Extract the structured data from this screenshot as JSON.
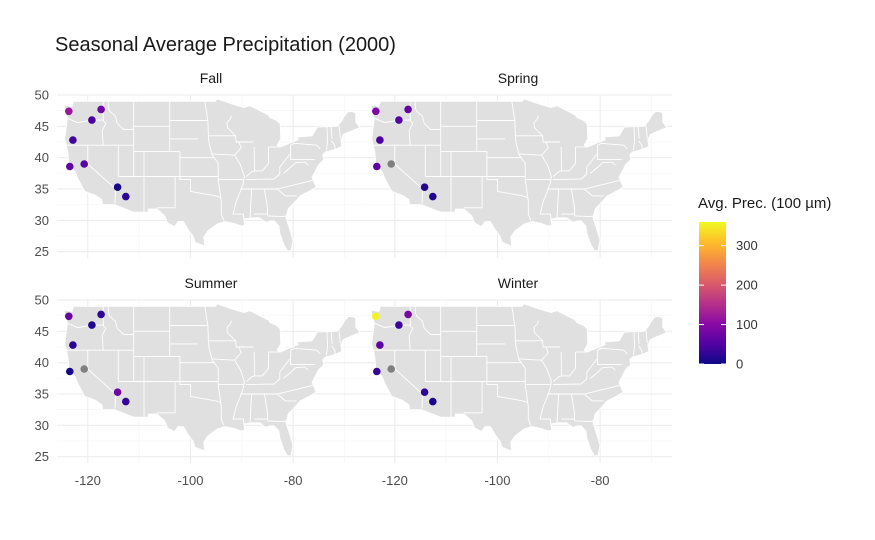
{
  "chart_data": {
    "type": "scatter",
    "title": "Seasonal Average Precipitation (2000)",
    "xlabel": "",
    "ylabel": "",
    "xlim": [
      -126,
      -66
    ],
    "ylim": [
      24,
      50
    ],
    "x_ticks": [
      -120,
      -100,
      -80
    ],
    "y_ticks": [
      25,
      30,
      35,
      40,
      45,
      50
    ],
    "grid": true,
    "legend": {
      "title": "Avg. Prec. (100 µm)",
      "placement": "right",
      "range": [
        0,
        360
      ],
      "ticks": [
        0,
        100,
        200,
        300
      ],
      "na_color": "#808080",
      "palette": [
        "#0d0887",
        "#5302a3",
        "#8b0aa5",
        "#b83289",
        "#db5c68",
        "#f48849",
        "#febd2a",
        "#f0f921"
      ]
    },
    "facets": [
      {
        "name": "Fall",
        "points": [
          {
            "x": -123.7,
            "y": 47.4,
            "value": 120
          },
          {
            "x": -117.4,
            "y": 47.7,
            "value": 75
          },
          {
            "x": -119.2,
            "y": 46.0,
            "value": 45
          },
          {
            "x": -122.9,
            "y": 42.8,
            "value": 38
          },
          {
            "x": -123.5,
            "y": 38.6,
            "value": 65
          },
          {
            "x": -120.7,
            "y": 39.0,
            "value": 55
          },
          {
            "x": -114.2,
            "y": 35.3,
            "value": 8
          },
          {
            "x": -112.6,
            "y": 33.8,
            "value": 22
          }
        ]
      },
      {
        "name": "Spring",
        "points": [
          {
            "x": -123.7,
            "y": 47.4,
            "value": 90
          },
          {
            "x": -117.4,
            "y": 47.7,
            "value": 65
          },
          {
            "x": -119.2,
            "y": 46.0,
            "value": 55
          },
          {
            "x": -122.9,
            "y": 42.8,
            "value": 45
          },
          {
            "x": -123.5,
            "y": 38.6,
            "value": 60
          },
          {
            "x": -120.7,
            "y": 39.0,
            "value": null
          },
          {
            "x": -114.2,
            "y": 35.3,
            "value": 18
          },
          {
            "x": -112.6,
            "y": 33.8,
            "value": 15
          }
        ]
      },
      {
        "name": "Summer",
        "points": [
          {
            "x": -123.7,
            "y": 47.4,
            "value": 70
          },
          {
            "x": -117.4,
            "y": 47.7,
            "value": 25
          },
          {
            "x": -119.2,
            "y": 46.0,
            "value": 15
          },
          {
            "x": -122.9,
            "y": 42.8,
            "value": 20
          },
          {
            "x": -123.5,
            "y": 38.6,
            "value": 5
          },
          {
            "x": -120.7,
            "y": 39.0,
            "value": null
          },
          {
            "x": -114.2,
            "y": 35.3,
            "value": 80
          },
          {
            "x": -112.6,
            "y": 33.8,
            "value": 30
          }
        ]
      },
      {
        "name": "Winter",
        "points": [
          {
            "x": -123.7,
            "y": 47.4,
            "value": 355
          },
          {
            "x": -117.4,
            "y": 47.7,
            "value": 85
          },
          {
            "x": -119.2,
            "y": 46.0,
            "value": 35
          },
          {
            "x": -122.9,
            "y": 42.8,
            "value": 60
          },
          {
            "x": -123.5,
            "y": 38.6,
            "value": 30
          },
          {
            "x": -120.7,
            "y": 39.0,
            "value": null
          },
          {
            "x": -114.2,
            "y": 35.3,
            "value": 25
          },
          {
            "x": -112.6,
            "y": 33.8,
            "value": 10
          }
        ]
      }
    ]
  }
}
